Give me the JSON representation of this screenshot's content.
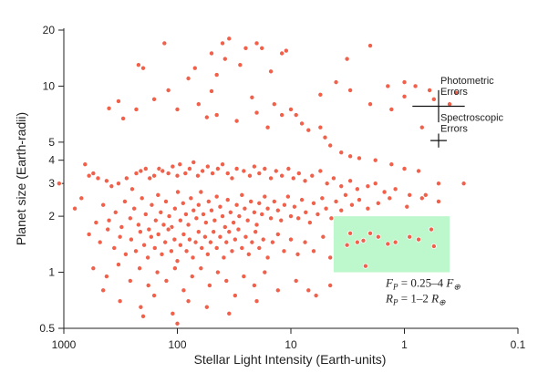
{
  "chart_data": {
    "type": "scatter",
    "title": "",
    "xlabel": "Stellar Light Intensity (Earth-units)",
    "ylabel": "Planet size (Earth-radii)",
    "x_scale": "log",
    "y_scale": "log",
    "x_reversed": true,
    "xlim": [
      1000,
      0.1
    ],
    "ylim": [
      0.5,
      20
    ],
    "x_ticks": [
      "1000",
      "100",
      "10",
      "1",
      "0.1"
    ],
    "y_ticks": [
      "0.5",
      "1",
      "2",
      "3",
      "4",
      "5",
      "10",
      "20"
    ],
    "x_tick_values": [
      1000,
      100,
      10,
      1,
      0.1
    ],
    "y_tick_values": [
      0.5,
      1,
      2,
      3,
      4,
      5,
      10,
      20
    ],
    "grid": false,
    "point_color": "#f0604a",
    "region": {
      "x_range": [
        4.2,
        0.4
      ],
      "y_range": [
        1,
        2
      ],
      "color": "#bdf7cc",
      "formula_lines": [
        {
          "base": "F",
          "sub": "P",
          "rest": " = 0.25–4 F",
          "subsymbol": "⊕"
        },
        {
          "base": "R",
          "sub": "P",
          "rest": " = 1–2 R",
          "subsymbol": "⊕"
        }
      ]
    },
    "error_bars": [
      {
        "label_lines": [
          "Photometric",
          "Errors"
        ],
        "x": 0.5,
        "y": 7.8,
        "x_err_factor": 1.7,
        "y_err_factor": 1.22
      },
      {
        "label_lines": [
          "Spectroscopic",
          "Errors"
        ],
        "x": 0.5,
        "y": 5.1,
        "x_err_factor": 1.18,
        "y_err_factor": 1.09
      }
    ],
    "highlight_points": [
      [
        3.0,
        1.62
      ],
      [
        2.6,
        1.45
      ],
      [
        2.3,
        1.48
      ],
      [
        2.0,
        1.62
      ],
      [
        1.7,
        1.55
      ],
      [
        1.4,
        1.42
      ],
      [
        1.2,
        1.45
      ],
      [
        0.9,
        1.55
      ],
      [
        0.75,
        1.5
      ],
      [
        0.55,
        1.38
      ],
      [
        0.58,
        1.7
      ],
      [
        2.2,
        1.08
      ],
      [
        3.2,
        1.4
      ]
    ],
    "points": [
      [
        130,
        17
      ],
      [
        200,
        12.5
      ],
      [
        220,
        13
      ],
      [
        35,
        18
      ],
      [
        40,
        17
      ],
      [
        25,
        16
      ],
      [
        20,
        17
      ],
      [
        18,
        16
      ],
      [
        15,
        12
      ],
      [
        12,
        15
      ],
      [
        11,
        15.5
      ],
      [
        28,
        13
      ],
      [
        38,
        14
      ],
      [
        45,
        11.5
      ],
      [
        50,
        15
      ],
      [
        70,
        12.5
      ],
      [
        80,
        11
      ],
      [
        3.2,
        14
      ],
      [
        2,
        16.5
      ],
      [
        1.4,
        10
      ],
      [
        1.0,
        8.8
      ],
      [
        0.8,
        10
      ],
      [
        0.55,
        8.5
      ],
      [
        0.35,
        9.2
      ],
      [
        0.6,
        9.5
      ],
      [
        5.5,
        9
      ],
      [
        9,
        7
      ],
      [
        12,
        7
      ],
      [
        4,
        10.5
      ],
      [
        3,
        9.5
      ],
      [
        2,
        8
      ],
      [
        1.3,
        7.5
      ],
      [
        1.0,
        10.5
      ],
      [
        0.7,
        6
      ],
      [
        0.4,
        8
      ],
      [
        300,
        6.7
      ],
      [
        400,
        7.6
      ],
      [
        330,
        8.3
      ],
      [
        230,
        7.5
      ],
      [
        160,
        8.5
      ],
      [
        120,
        9.5
      ],
      [
        100,
        7.5
      ],
      [
        65,
        8
      ],
      [
        55,
        6.8
      ],
      [
        50,
        9.4
      ],
      [
        45,
        7
      ],
      [
        30,
        6.5
      ],
      [
        22,
        8.7
      ],
      [
        20,
        7.2
      ],
      [
        16,
        6
      ],
      [
        14,
        8
      ],
      [
        10,
        7.5
      ],
      [
        8,
        6.3
      ],
      [
        7,
        5.8
      ],
      [
        5.5,
        6
      ],
      [
        5,
        5.3
      ],
      [
        4.5,
        4.8
      ],
      [
        3.6,
        4.4
      ],
      [
        3,
        4.2
      ],
      [
        2.5,
        4.1
      ],
      [
        1.8,
        4
      ],
      [
        1.3,
        3.8
      ],
      [
        1,
        3.6
      ],
      [
        0.75,
        3.5
      ],
      [
        0.5,
        3
      ],
      [
        1100,
        3
      ],
      [
        650,
        3.8
      ],
      [
        600,
        3.3
      ],
      [
        550,
        3.4
      ],
      [
        500,
        3.2
      ],
      [
        420,
        3.1
      ],
      [
        380,
        2.9
      ],
      [
        330,
        3.0
      ],
      [
        280,
        3.2
      ],
      [
        250,
        2.8
      ],
      [
        230,
        3.4
      ],
      [
        210,
        3.5
      ],
      [
        190,
        3.6
      ],
      [
        175,
        3.2
      ],
      [
        160,
        3.3
      ],
      [
        145,
        3.6
      ],
      [
        135,
        3.5
      ],
      [
        120,
        3.4
      ],
      [
        110,
        3.7
      ],
      [
        100,
        3.3
      ],
      [
        95,
        3.8
      ],
      [
        85,
        3.4
      ],
      [
        78,
        3.6
      ],
      [
        72,
        3.9
      ],
      [
        66,
        3.3
      ],
      [
        60,
        3.5
      ],
      [
        54,
        3.7
      ],
      [
        49,
        3.4
      ],
      [
        44,
        3.6
      ],
      [
        40,
        3.8
      ],
      [
        36,
        3.4
      ],
      [
        33,
        3.2
      ],
      [
        30,
        3.6
      ],
      [
        26,
        3.5
      ],
      [
        23,
        3.3
      ],
      [
        21,
        3.7
      ],
      [
        19,
        3.4
      ],
      [
        17,
        3.6
      ],
      [
        15,
        3.2
      ],
      [
        13.5,
        3.5
      ],
      [
        12,
        3.3
      ],
      [
        10.5,
        3.6
      ],
      [
        9.5,
        3.2
      ],
      [
        8.5,
        3.4
      ],
      [
        7.5,
        3.1
      ],
      [
        6.5,
        3.3
      ],
      [
        5.5,
        3.5
      ],
      [
        4.8,
        3.0
      ],
      [
        4.2,
        3.2
      ],
      [
        3.6,
        2.9
      ],
      [
        3.0,
        3.1
      ],
      [
        2.6,
        2.8
      ],
      [
        2.1,
        2.9
      ],
      [
        1.8,
        3.0
      ],
      [
        1.5,
        2.7
      ],
      [
        1.2,
        2.8
      ],
      [
        0.9,
        2.6
      ],
      [
        0.7,
        2.5
      ],
      [
        0.5,
        2.4
      ],
      [
        0.3,
        3.0
      ],
      [
        800,
        2.2
      ],
      [
        700,
        2.5
      ],
      [
        520,
        1.85
      ],
      [
        450,
        2.3
      ],
      [
        400,
        1.9
      ],
      [
        350,
        2.1
      ],
      [
        310,
        1.75
      ],
      [
        290,
        2.4
      ],
      [
        260,
        1.95
      ],
      [
        240,
        2.2
      ],
      [
        220,
        1.8
      ],
      [
        205,
        2.5
      ],
      [
        190,
        2.05
      ],
      [
        178,
        1.7
      ],
      [
        168,
        2.3
      ],
      [
        155,
        1.9
      ],
      [
        148,
        2.6
      ],
      [
        140,
        2.1
      ],
      [
        132,
        1.8
      ],
      [
        126,
        2.4
      ],
      [
        118,
        2.0
      ],
      [
        112,
        1.75
      ],
      [
        105,
        2.2
      ],
      [
        99,
        2.7
      ],
      [
        94,
        1.9
      ],
      [
        89,
        2.35
      ],
      [
        84,
        2.05
      ],
      [
        80,
        1.8
      ],
      [
        76,
        2.5
      ],
      [
        72,
        2.15
      ],
      [
        68,
        1.95
      ],
      [
        65,
        2.3
      ],
      [
        62,
        2.7
      ],
      [
        59,
        2.05
      ],
      [
        56,
        1.85
      ],
      [
        53,
        2.4
      ],
      [
        50,
        2.15
      ],
      [
        47,
        1.9
      ],
      [
        45,
        2.55
      ],
      [
        42,
        2.25
      ],
      [
        40,
        2.0
      ],
      [
        38,
        1.75
      ],
      [
        36,
        2.45
      ],
      [
        34,
        2.1
      ],
      [
        32,
        1.85
      ],
      [
        30,
        2.3
      ],
      [
        28.5,
        2.0
      ],
      [
        27,
        2.6
      ],
      [
        25.5,
        2.2
      ],
      [
        24,
        1.9
      ],
      [
        22.5,
        2.4
      ],
      [
        21,
        2.1
      ],
      [
        20,
        1.8
      ],
      [
        19,
        2.35
      ],
      [
        18,
        2.05
      ],
      [
        17,
        2.55
      ],
      [
        16,
        2.2
      ],
      [
        15,
        1.95
      ],
      [
        14,
        2.4
      ],
      [
        13,
        2.15
      ],
      [
        12.2,
        1.9
      ],
      [
        11.4,
        2.3
      ],
      [
        10.6,
        2.55
      ],
      [
        10,
        2.0
      ],
      [
        9.3,
        2.25
      ],
      [
        8.6,
        1.95
      ],
      [
        8,
        2.45
      ],
      [
        7.4,
        2.1
      ],
      [
        6.8,
        1.85
      ],
      [
        6.3,
        2.35
      ],
      [
        5.8,
        2.05
      ],
      [
        5.3,
        2.5
      ],
      [
        4.9,
        2.2
      ],
      [
        4.4,
        1.95
      ],
      [
        4.0,
        2.4
      ],
      [
        3.6,
        2.15
      ],
      [
        3.3,
        2.6
      ],
      [
        2.9,
        2.3
      ],
      [
        2.5,
        2.45
      ],
      [
        2.1,
        2.2
      ],
      [
        1.7,
        2.35
      ],
      [
        1.35,
        2.5
      ],
      [
        0.95,
        2.25
      ],
      [
        0.65,
        2.6
      ],
      [
        600,
        1.6
      ],
      [
        480,
        1.45
      ],
      [
        410,
        1.7
      ],
      [
        360,
        1.35
      ],
      [
        320,
        1.55
      ],
      [
        285,
        1.25
      ],
      [
        255,
        1.5
      ],
      [
        232,
        1.3
      ],
      [
        212,
        1.65
      ],
      [
        196,
        1.4
      ],
      [
        182,
        1.2
      ],
      [
        170,
        1.55
      ],
      [
        158,
        1.35
      ],
      [
        147,
        1.6
      ],
      [
        137,
        1.25
      ],
      [
        128,
        1.45
      ],
      [
        120,
        1.7
      ],
      [
        113,
        1.3
      ],
      [
        106,
        1.5
      ],
      [
        100,
        1.15
      ],
      [
        94,
        1.4
      ],
      [
        88,
        1.6
      ],
      [
        83,
        1.3
      ],
      [
        78,
        1.5
      ],
      [
        73,
        1.2
      ],
      [
        69,
        1.45
      ],
      [
        65,
        1.65
      ],
      [
        61,
        1.35
      ],
      [
        57,
        1.55
      ],
      [
        54,
        1.25
      ],
      [
        51,
        1.45
      ],
      [
        48,
        1.65
      ],
      [
        45,
        1.35
      ],
      [
        42,
        1.55
      ],
      [
        39,
        1.2
      ],
      [
        37,
        1.45
      ],
      [
        35,
        1.65
      ],
      [
        33,
        1.3
      ],
      [
        31,
        1.5
      ],
      [
        29,
        1.7
      ],
      [
        27,
        1.35
      ],
      [
        25,
        1.55
      ],
      [
        23.5,
        1.25
      ],
      [
        22,
        1.45
      ],
      [
        20.5,
        1.65
      ],
      [
        19,
        1.35
      ],
      [
        17.5,
        1.5
      ],
      [
        16,
        1.2
      ],
      [
        14.5,
        1.45
      ],
      [
        13,
        1.6
      ],
      [
        11.5,
        1.3
      ],
      [
        10,
        1.5
      ],
      [
        8.7,
        1.25
      ],
      [
        7.5,
        1.45
      ],
      [
        6.3,
        1.3
      ],
      [
        5.2,
        1.55
      ],
      [
        4.5,
        1.2
      ],
      [
        550,
        1.05
      ],
      [
        420,
        0.95
      ],
      [
        330,
        1.1
      ],
      [
        260,
        0.9
      ],
      [
        215,
        1.05
      ],
      [
        180,
        0.85
      ],
      [
        150,
        1.0
      ],
      [
        125,
        0.9
      ],
      [
        105,
        1.05
      ],
      [
        88,
        0.8
      ],
      [
        74,
        0.95
      ],
      [
        62,
        1.05
      ],
      [
        52,
        0.85
      ],
      [
        44,
        1.0
      ],
      [
        37,
        0.9
      ],
      [
        31,
        0.75
      ],
      [
        26,
        0.95
      ],
      [
        21,
        0.85
      ],
      [
        17,
        1.0
      ],
      [
        13,
        0.8
      ],
      [
        9,
        0.9
      ],
      [
        6,
        0.75
      ],
      [
        4.5,
        0.85
      ],
      [
        450,
        0.8
      ],
      [
        320,
        0.7
      ],
      [
        210,
        0.65
      ],
      [
        160,
        0.75
      ],
      [
        110,
        0.6
      ],
      [
        80,
        0.7
      ],
      [
        55,
        0.65
      ],
      [
        35,
        0.6
      ],
      [
        20,
        0.7
      ],
      [
        7,
        0.8
      ],
      [
        100,
        0.53
      ],
      [
        200,
        0.58
      ]
    ]
  }
}
